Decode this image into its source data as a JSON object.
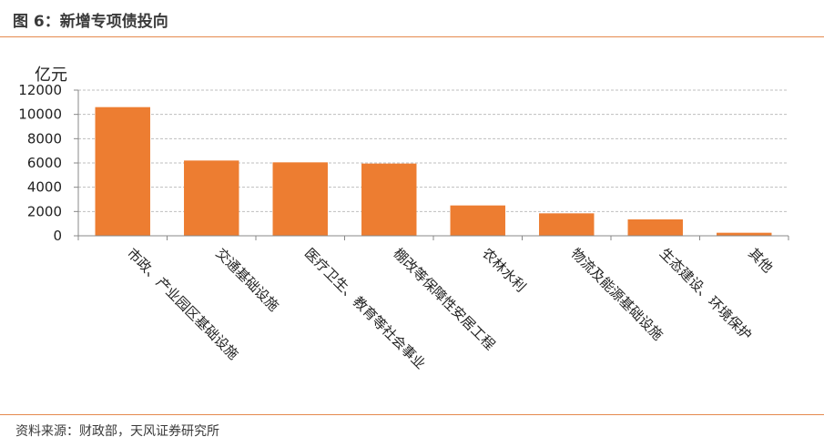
{
  "figure": {
    "title": "图 6：新增专项债投向",
    "source": "资料来源：财政部，天风证券研究所"
  },
  "colors": {
    "bar": "#ED7D31",
    "accent_rule": "#E58A4E",
    "grid": "#BFBFBF"
  },
  "chart_data": {
    "type": "bar",
    "title": "",
    "ylabel": "亿元",
    "xlabel": "",
    "ylim": [
      0,
      12000
    ],
    "yticks": [
      0,
      2000,
      4000,
      6000,
      8000,
      10000,
      12000
    ],
    "grid": true,
    "categories": [
      "市政、产业园区基础设施",
      "交通基础设施",
      "医疗卫生、教育等社会事业",
      "棚改等保障性安居工程",
      "农林水利",
      "物流及能源基础设施",
      "生态建设、环境保护",
      "其他"
    ],
    "values": [
      10600,
      6200,
      6050,
      5950,
      2500,
      1850,
      1350,
      250
    ]
  }
}
